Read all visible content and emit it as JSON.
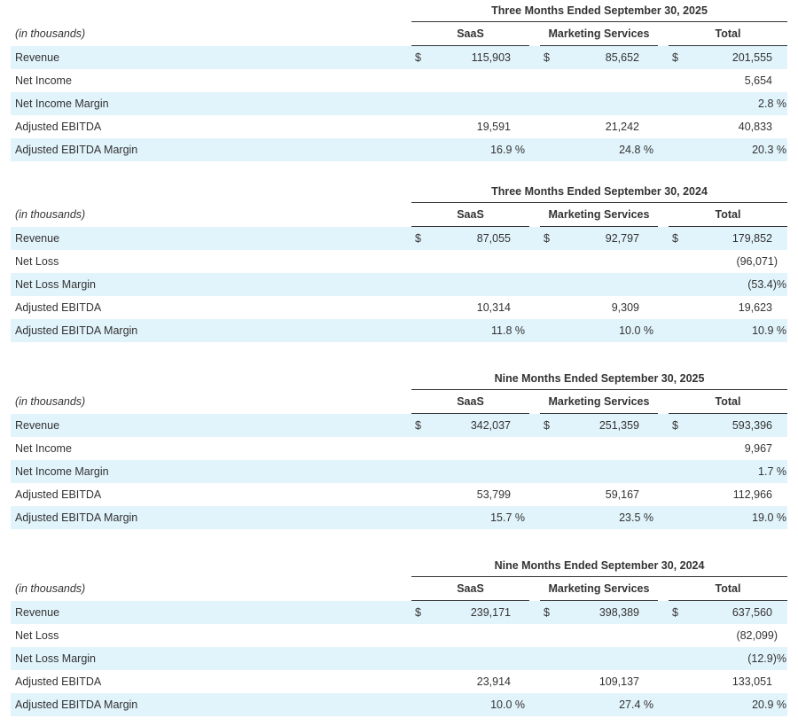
{
  "tables": [
    {
      "title": "Three Months Ended September 30, 2025",
      "units_label": "(in thousands)",
      "columns": [
        "SaaS",
        "Marketing Services",
        "Total"
      ],
      "rows": [
        {
          "label": "Revenue",
          "dollar": "$",
          "saas": "115,903",
          "marketing": "85,652",
          "total": "201,555"
        },
        {
          "label": "Net Income",
          "dollar": "",
          "saas": "",
          "marketing": "",
          "total": "5,654"
        },
        {
          "label": "Net Income Margin",
          "dollar": "",
          "saas": "",
          "marketing": "",
          "total": "2.8 %"
        },
        {
          "label": "Adjusted EBITDA",
          "dollar": "",
          "saas": "19,591",
          "marketing": "21,242",
          "total": "40,833"
        },
        {
          "label": "Adjusted EBITDA Margin",
          "dollar": "",
          "saas": "16.9 %",
          "marketing": "24.8 %",
          "total": "20.3 %"
        }
      ]
    },
    {
      "title": "Three Months Ended September 30, 2024",
      "units_label": "(in thousands)",
      "columns": [
        "SaaS",
        "Marketing Services",
        "Total"
      ],
      "rows": [
        {
          "label": "Revenue",
          "dollar": "$",
          "saas": "87,055",
          "marketing": "92,797",
          "total": "179,852"
        },
        {
          "label": "Net Loss",
          "dollar": "",
          "saas": "",
          "marketing": "",
          "total": "(96,071)"
        },
        {
          "label": "Net Loss Margin",
          "dollar": "",
          "saas": "",
          "marketing": "",
          "total": "(53.4)%"
        },
        {
          "label": "Adjusted EBITDA",
          "dollar": "",
          "saas": "10,314",
          "marketing": "9,309",
          "total": "19,623"
        },
        {
          "label": "Adjusted EBITDA Margin",
          "dollar": "",
          "saas": "11.8 %",
          "marketing": "10.0 %",
          "total": "10.9 %"
        }
      ]
    },
    {
      "title": "Nine Months Ended September 30, 2025",
      "units_label": "(in thousands)",
      "columns": [
        "SaaS",
        "Marketing Services",
        "Total"
      ],
      "rows": [
        {
          "label": "Revenue",
          "dollar": "$",
          "saas": "342,037",
          "marketing": "251,359",
          "total": "593,396"
        },
        {
          "label": "Net Income",
          "dollar": "",
          "saas": "",
          "marketing": "",
          "total": "9,967"
        },
        {
          "label": "Net Income Margin",
          "dollar": "",
          "saas": "",
          "marketing": "",
          "total": "1.7 %"
        },
        {
          "label": "Adjusted EBITDA",
          "dollar": "",
          "saas": "53,799",
          "marketing": "59,167",
          "total": "112,966"
        },
        {
          "label": "Adjusted EBITDA Margin",
          "dollar": "",
          "saas": "15.7 %",
          "marketing": "23.5 %",
          "total": "19.0 %"
        }
      ]
    },
    {
      "title": "Nine Months Ended September 30, 2024",
      "units_label": "(in thousands)",
      "columns": [
        "SaaS",
        "Marketing Services",
        "Total"
      ],
      "rows": [
        {
          "label": "Revenue",
          "dollar": "$",
          "saas": "239,171",
          "marketing": "398,389",
          "total": "637,560"
        },
        {
          "label": "Net Loss",
          "dollar": "",
          "saas": "",
          "marketing": "",
          "total": "(82,099)"
        },
        {
          "label": "Net Loss Margin",
          "dollar": "",
          "saas": "",
          "marketing": "",
          "total": "(12.9)%"
        },
        {
          "label": "Adjusted EBITDA",
          "dollar": "",
          "saas": "23,914",
          "marketing": "109,137",
          "total": "133,051"
        },
        {
          "label": "Adjusted EBITDA Margin",
          "dollar": "",
          "saas": "10.0 %",
          "marketing": "27.4 %",
          "total": "20.9 %"
        }
      ]
    }
  ]
}
